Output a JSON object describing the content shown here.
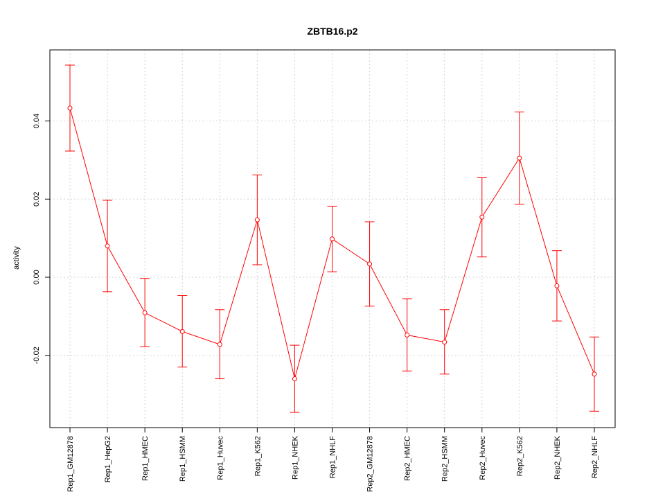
{
  "chart_data": {
    "type": "line",
    "title": "ZBTB16.p2",
    "xlabel": "",
    "ylabel": "activity",
    "categories": [
      "Rep1_GM12878",
      "Rep1_HepG2",
      "Rep1_HMEC",
      "Rep1_HSMM",
      "Rep1_Huvec",
      "Rep1_K562",
      "Rep1_NHEK",
      "Rep1_NHLF",
      "Rep2_GM12878",
      "Rep2_HMEC",
      "Rep2_HSMM",
      "Rep2_Huvec",
      "Rep2_K562",
      "Rep2_NHEK",
      "Rep2_NHLF"
    ],
    "series": [
      {
        "values": [
          0.0433,
          0.008,
          -0.0091,
          -0.0139,
          -0.0172,
          0.0147,
          -0.026,
          0.0098,
          0.0034,
          -0.0148,
          -0.0166,
          0.0154,
          0.0305,
          -0.0022,
          -0.0248
        ],
        "error_low": [
          0.0323,
          -0.0037,
          -0.0178,
          -0.023,
          -0.026,
          0.0032,
          -0.0346,
          0.0014,
          -0.0074,
          -0.024,
          -0.0248,
          0.0052,
          0.0187,
          -0.0112,
          -0.0343
        ],
        "error_high": [
          0.0543,
          0.0197,
          -0.0003,
          -0.0047,
          -0.0083,
          0.0262,
          -0.0174,
          0.0182,
          0.0142,
          -0.0055,
          -0.0083,
          0.0255,
          0.0423,
          0.0068,
          -0.0153
        ]
      }
    ],
    "yticks": [
      -0.02,
      0.0,
      0.02,
      0.04
    ],
    "ytick_labels": [
      "-0.02",
      "0.00",
      "0.02",
      "0.04"
    ],
    "ylim": [
      -0.0385,
      0.0582
    ],
    "grid": true,
    "colors": {
      "series": "#ff0000",
      "grid": "#d3d3d3",
      "axis": "#000000"
    }
  }
}
